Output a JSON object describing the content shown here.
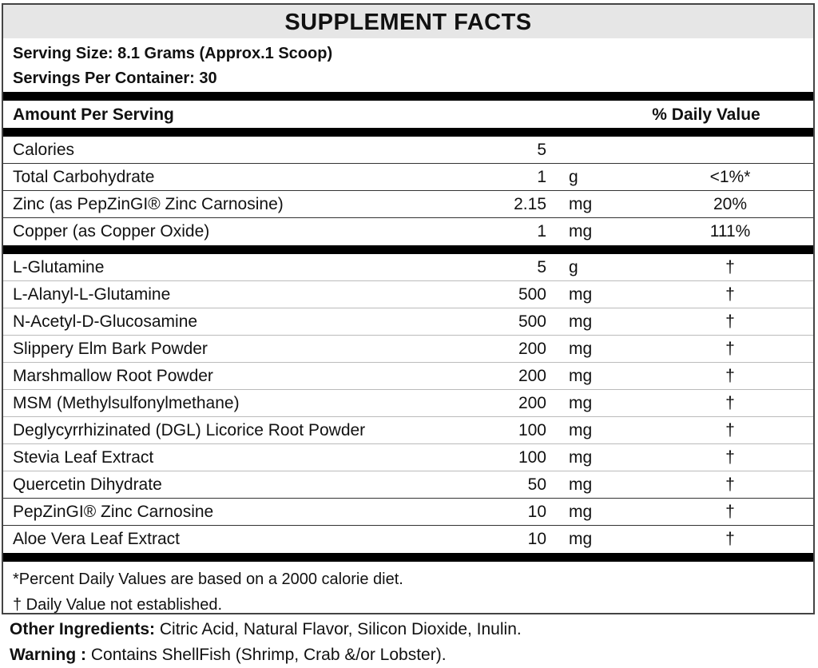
{
  "title": "SUPPLEMENT FACTS",
  "serving_size": "Serving Size: 8.1 Grams (Approx.1 Scoop)",
  "servings_per_container": "Servings Per Container: 30",
  "header": {
    "amount": "Amount Per Serving",
    "dv": "% Daily Value"
  },
  "nutrients": [
    {
      "name": "Calories",
      "amount": "5",
      "unit": "",
      "dv": ""
    },
    {
      "name": "Total Carbohydrate",
      "amount": "1",
      "unit": "g",
      "dv": "<1%*"
    },
    {
      "name": "Zinc (as PepZinGI® Zinc Carnosine)",
      "amount": "2.15",
      "unit": "mg",
      "dv": "20%"
    },
    {
      "name": "Copper (as Copper Oxide)",
      "amount": "1",
      "unit": "mg",
      "dv": "111%"
    }
  ],
  "ingredients": [
    {
      "name": "L-Glutamine",
      "amount": "5",
      "unit": "g",
      "dv": "†"
    },
    {
      "name": "L-Alanyl-L-Glutamine",
      "amount": "500",
      "unit": "mg",
      "dv": "†"
    },
    {
      "name": "N-Acetyl-D-Glucosamine",
      "amount": "500",
      "unit": "mg",
      "dv": "†"
    },
    {
      "name": "Slippery Elm Bark Powder",
      "amount": "200",
      "unit": "mg",
      "dv": "†"
    },
    {
      "name": "Marshmallow Root Powder",
      "amount": "200",
      "unit": "mg",
      "dv": "†"
    },
    {
      "name": "MSM (Methylsulfonylmethane)",
      "amount": "200",
      "unit": "mg",
      "dv": "†"
    },
    {
      "name": "Deglycyrrhizinated (DGL) Licorice Root Powder",
      "amount": "100",
      "unit": "mg",
      "dv": "†"
    },
    {
      "name": "Stevia Leaf Extract",
      "amount": "100",
      "unit": "mg",
      "dv": "†"
    },
    {
      "name": "Quercetin Dihydrate",
      "amount": "50",
      "unit": "mg",
      "dv": "†"
    },
    {
      "name": "PepZinGI® Zinc Carnosine",
      "amount": "10",
      "unit": "mg",
      "dv": "†"
    },
    {
      "name": "Aloe Vera Leaf Extract",
      "amount": "10",
      "unit": "mg",
      "dv": "†"
    }
  ],
  "footnotes": [
    "*Percent Daily Values are based on a 2000 calorie diet.",
    "† Daily Value not established."
  ],
  "other_ingredients": {
    "label": "Other Ingredients:",
    "text": " Citric Acid, Natural Flavor, Silicon Dioxide, Inulin."
  },
  "warning": {
    "label": "Warning :",
    "text": " Contains ShellFish (Shrimp, Crab &/or Lobster)."
  }
}
